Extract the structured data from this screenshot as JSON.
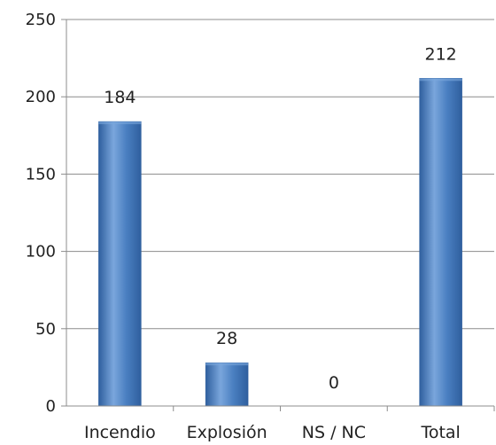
{
  "chart_data": {
    "type": "bar",
    "title": "",
    "xlabel": "",
    "ylabel": "",
    "categories": [
      "Incendio",
      "Explosión",
      "NS / NC",
      "Total"
    ],
    "values": [
      184,
      28,
      0,
      212
    ],
    "data_labels": [
      "184",
      "28",
      "0",
      "212"
    ],
    "ylim": [
      0,
      250
    ],
    "yticks": [
      0,
      50,
      100,
      150,
      200,
      250
    ],
    "grid": true,
    "legend": "none",
    "colors": {
      "bar": "#4a7fc1",
      "bar_dark": "#2f5f9e",
      "bar_light": "#7aa6dc",
      "grid": "#8c8c8c",
      "axis": "#8c8c8c"
    }
  }
}
